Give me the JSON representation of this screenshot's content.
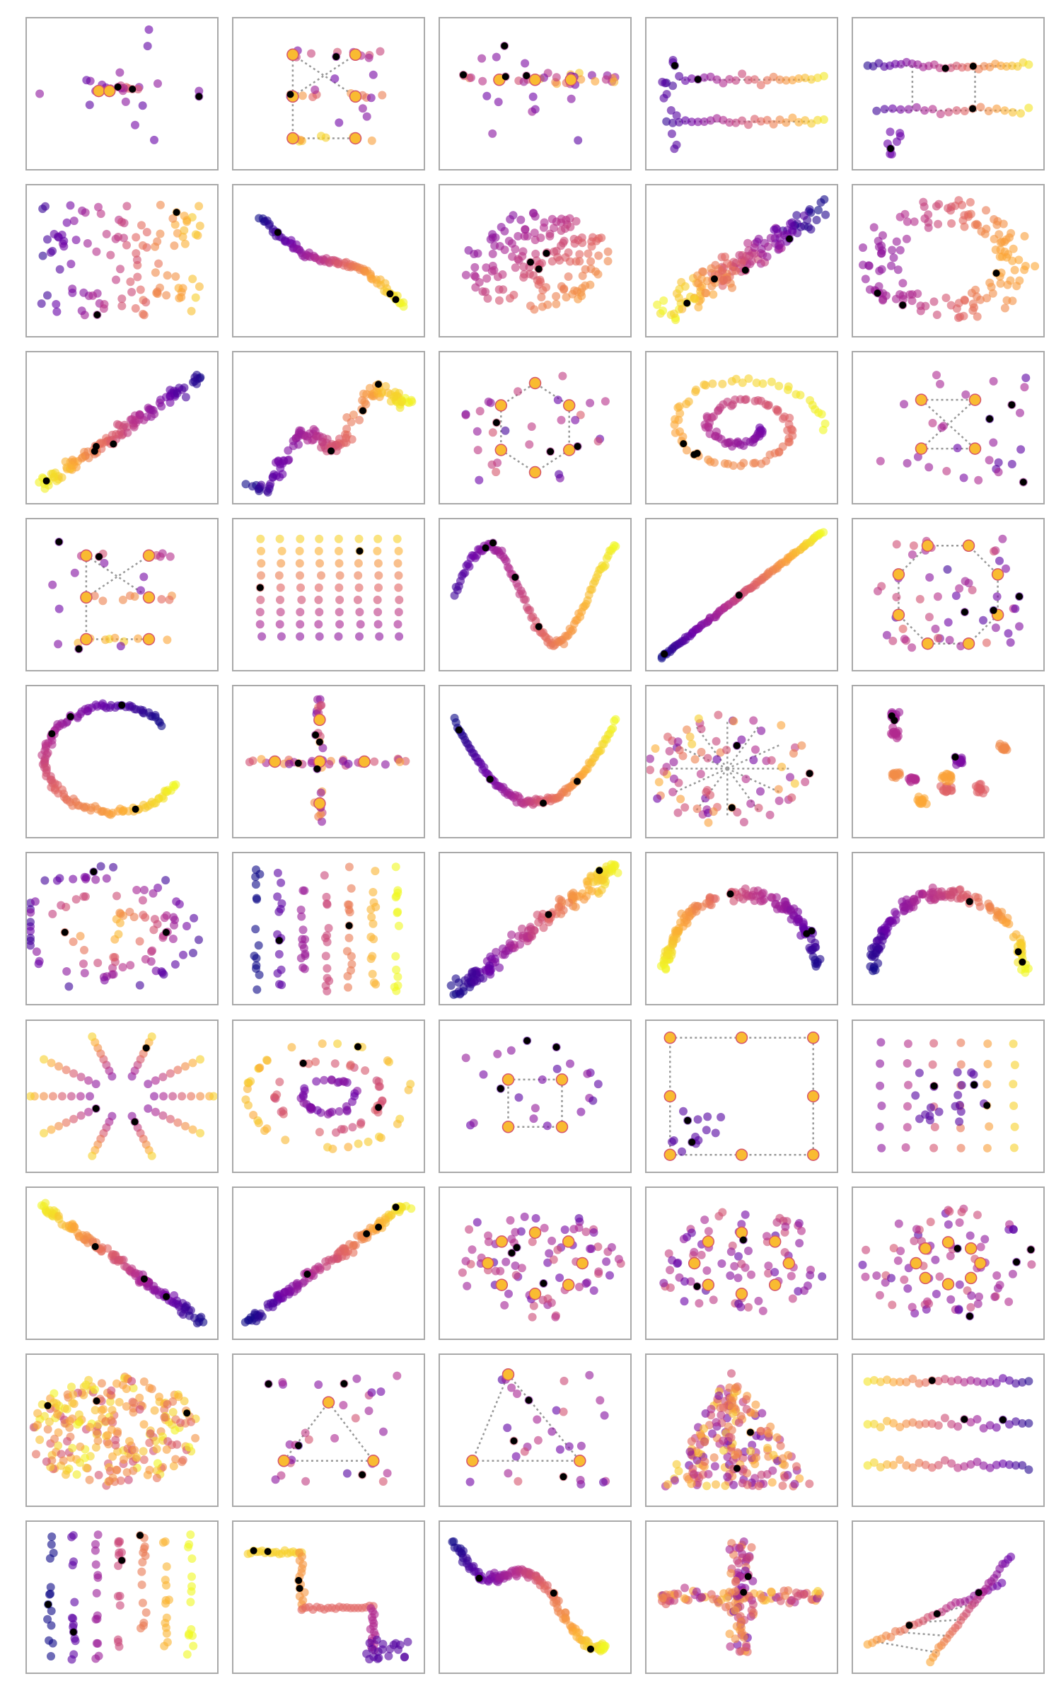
{
  "figure": {
    "rows": 10,
    "cols": 5,
    "frame_color": "#a9a9a9",
    "background": "#ffffff",
    "connector_color": "#999999",
    "colormap": [
      "#0d0887",
      "#6a00a8",
      "#b12a90",
      "#e16462",
      "#fca636",
      "#f0f921"
    ],
    "colormap_name": "plasma",
    "highlight_color": "#000000",
    "axes_visible": false
  },
  "chart_data": [
    {
      "type": "scatter",
      "shape": "cross-cluster",
      "kind": "cross"
    },
    {
      "type": "scatter",
      "shape": "crossed-bars",
      "kind": "twobars"
    },
    {
      "type": "scatter",
      "shape": "horizontal-band",
      "kind": "hband"
    },
    {
      "type": "scatter",
      "shape": "two-horizontal-lines",
      "kind": "twolines"
    },
    {
      "type": "scatter",
      "shape": "two-horizontal-lines-dashed",
      "kind": "twolines2"
    },
    {
      "type": "scatter",
      "shape": "noisy-cloud",
      "kind": "cloud"
    },
    {
      "type": "scatter",
      "shape": "s-curve",
      "kind": "scurve"
    },
    {
      "type": "scatter",
      "shape": "blob",
      "kind": "blob"
    },
    {
      "type": "scatter",
      "shape": "diagonal-cloud",
      "kind": "diagblob"
    },
    {
      "type": "scatter",
      "shape": "ring",
      "kind": "ringcloud"
    },
    {
      "type": "scatter",
      "shape": "rising-line-wide",
      "kind": "diagup"
    },
    {
      "type": "scatter",
      "shape": "zigzag-rising",
      "kind": "zigup"
    },
    {
      "type": "scatter",
      "shape": "hexagon",
      "kind": "hexagon"
    },
    {
      "type": "scatter",
      "shape": "spiral-blob",
      "kind": "spiral"
    },
    {
      "type": "scatter",
      "shape": "bowtie",
      "kind": "bowtie"
    },
    {
      "type": "scatter",
      "shape": "crossed-bars",
      "kind": "twobars"
    },
    {
      "type": "scatter",
      "shape": "column-grid",
      "kind": "columns"
    },
    {
      "type": "scatter",
      "shape": "sine-wave",
      "kind": "sine"
    },
    {
      "type": "scatter",
      "shape": "straight-line",
      "kind": "line"
    },
    {
      "type": "scatter",
      "shape": "octagon",
      "kind": "octagon"
    },
    {
      "type": "scatter",
      "shape": "arc-circle",
      "kind": "arc"
    },
    {
      "type": "scatter",
      "shape": "plus",
      "kind": "plus"
    },
    {
      "type": "scatter",
      "shape": "parabola",
      "kind": "parabola"
    },
    {
      "type": "scatter",
      "shape": "radial-star",
      "kind": "star"
    },
    {
      "type": "scatter",
      "shape": "clusters",
      "kind": "clusters"
    },
    {
      "type": "scatter",
      "shape": "star-burst",
      "kind": "burst"
    },
    {
      "type": "scatter",
      "shape": "vertical-stripes",
      "kind": "vstripes"
    },
    {
      "type": "scatter",
      "shape": "rising-blob",
      "kind": "risingblob"
    },
    {
      "type": "scatter",
      "shape": "arch",
      "kind": "arch"
    },
    {
      "type": "scatter",
      "shape": "arch",
      "kind": "arch2"
    },
    {
      "type": "scatter",
      "shape": "ring-of-spokes",
      "kind": "sunring"
    },
    {
      "type": "scatter",
      "shape": "concentric-rings",
      "kind": "concentric"
    },
    {
      "type": "scatter",
      "shape": "small-square",
      "kind": "smallsquare"
    },
    {
      "type": "scatter",
      "shape": "large-square",
      "kind": "bigsquare"
    },
    {
      "type": "scatter",
      "shape": "grid",
      "kind": "grid"
    },
    {
      "type": "scatter",
      "shape": "falling-line",
      "kind": "descend"
    },
    {
      "type": "scatter",
      "shape": "rising-line",
      "kind": "ascend"
    },
    {
      "type": "scatter",
      "shape": "ring-with-nodes",
      "kind": "ringnodes"
    },
    {
      "type": "scatter",
      "shape": "ring-with-nodes",
      "kind": "ringnodes"
    },
    {
      "type": "scatter",
      "shape": "ring-with-nodes-small",
      "kind": "ringnodes2"
    },
    {
      "type": "scatter",
      "shape": "dense-cloud",
      "kind": "dense"
    },
    {
      "type": "scatter",
      "shape": "triangle",
      "kind": "triangle"
    },
    {
      "type": "scatter",
      "shape": "triangle",
      "kind": "triangle2"
    },
    {
      "type": "scatter",
      "shape": "filled-triangle",
      "kind": "triblob"
    },
    {
      "type": "scatter",
      "shape": "horizontal-bands",
      "kind": "hbands"
    },
    {
      "type": "scatter",
      "shape": "vertical-stripes",
      "kind": "vstripes2"
    },
    {
      "type": "scatter",
      "shape": "staircase",
      "kind": "staircase"
    },
    {
      "type": "scatter",
      "shape": "zigzag-falling",
      "kind": "zigdown"
    },
    {
      "type": "scatter",
      "shape": "cross-blob",
      "kind": "crossblob"
    },
    {
      "type": "scatter",
      "shape": "fan",
      "kind": "fan"
    }
  ]
}
